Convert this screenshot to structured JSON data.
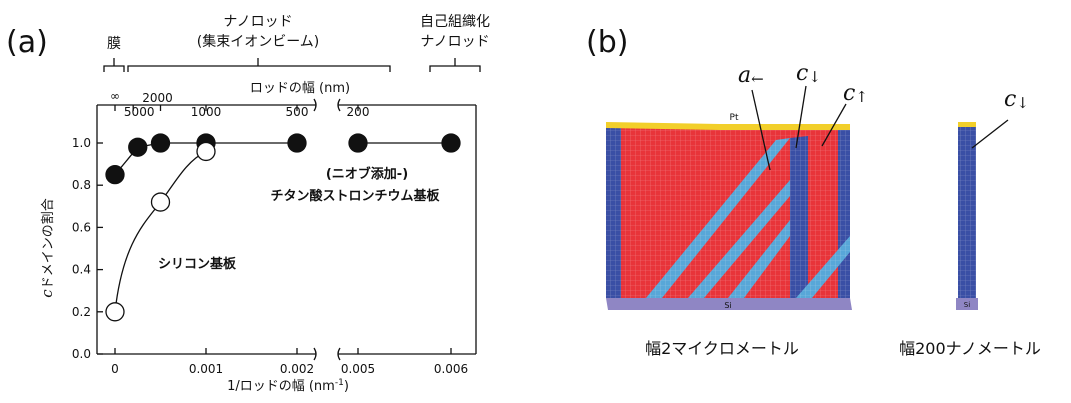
{
  "panel_a": {
    "label": "(a)",
    "top_labels": {
      "film": "膜",
      "nanorod": "ナノロッド",
      "nanorod_sub": "(集束イオンビーム)",
      "self_org_1": "自己組織化",
      "self_org_2": "ナノロッド"
    },
    "top_axis_label": "ロッドの幅 (nm)",
    "sto_label_1": "(ニオブ添加-)",
    "sto_label_2": "チタン酸ストロンチウム基板",
    "si_label": "シリコン基板"
  },
  "panel_b": {
    "label": "(b)",
    "caption_left": "幅2マイクロメートル",
    "caption_right": "幅200ナノメートル",
    "pt_label": "Pt",
    "sub_label_left": "Si",
    "sub_label_right": "Si",
    "ann_a_sym": "a",
    "ann_a_arrow": "←",
    "ann_c1_sym": "c",
    "ann_c1_arrow": "↓",
    "ann_c2_sym": "c",
    "ann_c2_arrow": "↑",
    "ann_c3_sym": "c",
    "ann_c3_arrow": "↓",
    "colors": {
      "red": "#e8343a",
      "blue": "#3a4fa5",
      "lightblue": "#58a7d8",
      "pt": "#f2cf2a",
      "substrate": "#8f86c4"
    }
  },
  "chart_data": {
    "type": "scatter",
    "title": "",
    "xlabel_prefix": "1/ロッドの幅 (nm",
    "xlabel_sup": "-1",
    "xlabel_suffix": ")",
    "ylabel_italic": "c",
    "ylabel_rest": "ドメインの割合",
    "ylim": [
      0,
      1.0
    ],
    "yticks": [
      "0.0",
      "0.2",
      "0.4",
      "0.6",
      "0.8",
      "1.0"
    ],
    "xticks": [
      {
        "label": "0",
        "value": 0
      },
      {
        "label": "0.001",
        "value": 0.001
      },
      {
        "label": "0.002",
        "value": 0.002
      },
      {
        "label": "0.005",
        "value": 0.005
      },
      {
        "label": "0.006",
        "value": 0.006
      }
    ],
    "x_axis_break": [
      0.002,
      0.005
    ],
    "top_axis_ticks": [
      {
        "label": "∞",
        "value": 0
      },
      {
        "label": "5000",
        "value": 0.0002
      },
      {
        "label": "2000",
        "value": 0.0005
      },
      {
        "label": "1000",
        "value": 0.001
      },
      {
        "label": "500",
        "value": 0.002
      },
      {
        "label": "200",
        "value": 0.005
      }
    ],
    "series": [
      {
        "name": "(ニオブ添加-)チタン酸ストロンチウム基板",
        "marker": "filled",
        "x": [
          0,
          0.00025,
          0.0005,
          0.001,
          0.002,
          0.005,
          0.006
        ],
        "y": [
          0.85,
          0.98,
          1.0,
          1.0,
          1.0,
          1.0,
          1.0
        ]
      },
      {
        "name": "シリコン基板",
        "marker": "open",
        "x": [
          0,
          0.0005,
          0.001
        ],
        "y": [
          0.2,
          0.72,
          0.96
        ]
      }
    ]
  }
}
